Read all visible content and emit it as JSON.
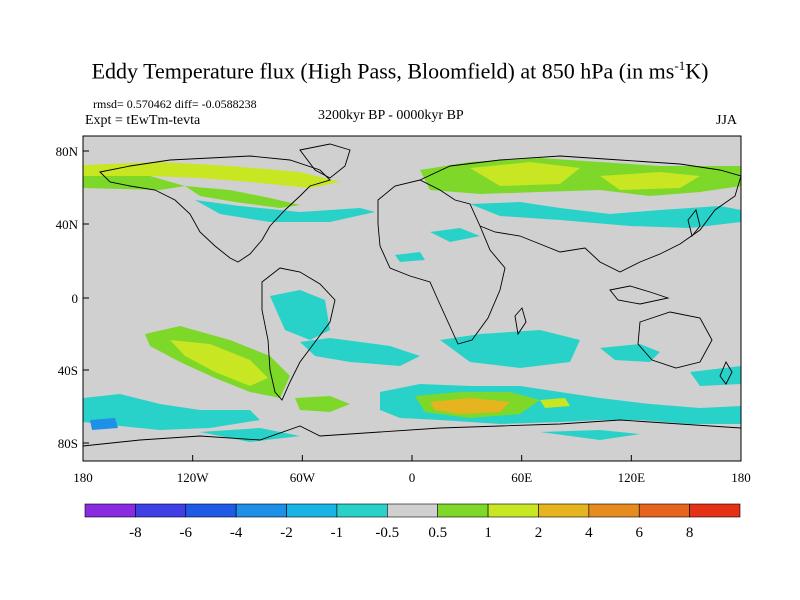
{
  "title": {
    "main": "Eddy Temperature flux (High Pass, Bloomfield) at 850 hPa (in ms",
    "sup": "-1",
    "tail": "K)"
  },
  "stats": "rmsd= 0.570462  diff= -0.0588238",
  "experiment": "Expt = tEwTm-tevta",
  "period": "3200kyr BP - 0000kyr BP",
  "season": "JJA",
  "axes": {
    "y_ticks": [
      "80N",
      "40N",
      "0",
      "40S",
      "80S"
    ],
    "x_ticks": [
      "180",
      "120W",
      "60W",
      "0",
      "60E",
      "120E",
      "180"
    ]
  },
  "colorbar": {
    "labels": [
      "-8",
      "-6",
      "-4",
      "-2",
      "-1",
      "-0.5",
      "0.5",
      "1",
      "2",
      "4",
      "6",
      "8"
    ],
    "colors": [
      "#8a2be2",
      "#3f3fe6",
      "#1e5ae6",
      "#1e90e8",
      "#19b4e6",
      "#28d2c8",
      "#d0d0d0",
      "#7ed82a",
      "#c8e622",
      "#e6b41e",
      "#e68c1e",
      "#e6641e",
      "#e63214"
    ]
  },
  "colors": {
    "land_ocean_bg": "#d0d0d0",
    "coast": "#000000"
  }
}
